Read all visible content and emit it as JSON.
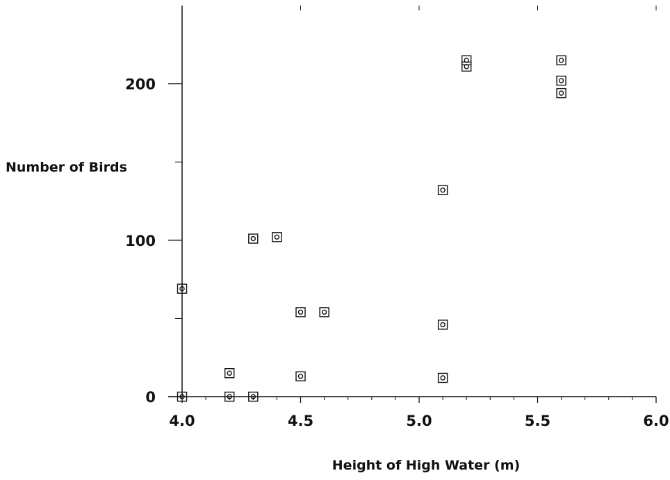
{
  "chart_data": {
    "type": "scatter",
    "title": "",
    "xlabel": "Height of High Water (m)",
    "ylabel": "Number of Birds",
    "xlim": [
      4.0,
      6.0
    ],
    "ylim": [
      0,
      250
    ],
    "x_ticks": [
      4.0,
      4.5,
      5.0,
      5.5,
      6.0
    ],
    "x_tick_labels": [
      "4.0",
      "4.5",
      "5.0",
      "5.5",
      "6.0"
    ],
    "y_ticks": [
      0,
      100,
      200
    ],
    "y_tick_labels": [
      "0",
      "100",
      "200"
    ],
    "grid": false,
    "marker": "square with inner circle",
    "color": "#111111",
    "points": [
      {
        "x": 4.0,
        "y": 0
      },
      {
        "x": 4.0,
        "y": 69
      },
      {
        "x": 4.2,
        "y": 0
      },
      {
        "x": 4.2,
        "y": 15
      },
      {
        "x": 4.3,
        "y": 0
      },
      {
        "x": 4.3,
        "y": 101
      },
      {
        "x": 4.4,
        "y": 102
      },
      {
        "x": 4.5,
        "y": 13
      },
      {
        "x": 4.5,
        "y": 54
      },
      {
        "x": 4.6,
        "y": 54
      },
      {
        "x": 5.1,
        "y": 12
      },
      {
        "x": 5.1,
        "y": 46
      },
      {
        "x": 5.1,
        "y": 132
      },
      {
        "x": 5.2,
        "y": 211
      },
      {
        "x": 5.2,
        "y": 215
      },
      {
        "x": 5.6,
        "y": 194
      },
      {
        "x": 5.6,
        "y": 202
      },
      {
        "x": 5.6,
        "y": 215
      }
    ]
  }
}
